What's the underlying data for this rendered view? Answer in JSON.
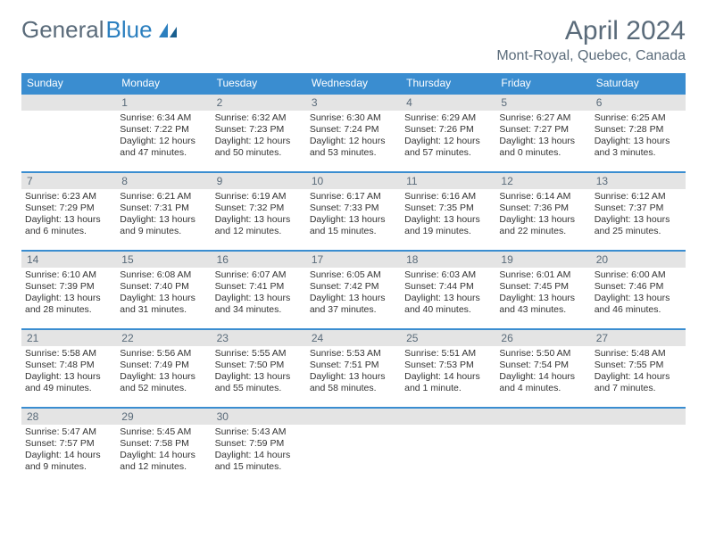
{
  "logo": {
    "text1": "General",
    "text2": "Blue"
  },
  "title": "April 2024",
  "location": "Mont-Royal, Quebec, Canada",
  "colors": {
    "header_bg": "#3a8dd0",
    "header_text": "#ffffff",
    "daynum_bg": "#e4e4e4",
    "daynum_text": "#5a6b7a",
    "border": "#3a8dd0",
    "logo_gray": "#5a6b7a",
    "logo_blue": "#2b7fbf"
  },
  "day_headers": [
    "Sunday",
    "Monday",
    "Tuesday",
    "Wednesday",
    "Thursday",
    "Friday",
    "Saturday"
  ],
  "weeks": [
    [
      {
        "n": "",
        "sunrise": "",
        "sunset": "",
        "daylight": ""
      },
      {
        "n": "1",
        "sunrise": "Sunrise: 6:34 AM",
        "sunset": "Sunset: 7:22 PM",
        "daylight": "Daylight: 12 hours and 47 minutes."
      },
      {
        "n": "2",
        "sunrise": "Sunrise: 6:32 AM",
        "sunset": "Sunset: 7:23 PM",
        "daylight": "Daylight: 12 hours and 50 minutes."
      },
      {
        "n": "3",
        "sunrise": "Sunrise: 6:30 AM",
        "sunset": "Sunset: 7:24 PM",
        "daylight": "Daylight: 12 hours and 53 minutes."
      },
      {
        "n": "4",
        "sunrise": "Sunrise: 6:29 AM",
        "sunset": "Sunset: 7:26 PM",
        "daylight": "Daylight: 12 hours and 57 minutes."
      },
      {
        "n": "5",
        "sunrise": "Sunrise: 6:27 AM",
        "sunset": "Sunset: 7:27 PM",
        "daylight": "Daylight: 13 hours and 0 minutes."
      },
      {
        "n": "6",
        "sunrise": "Sunrise: 6:25 AM",
        "sunset": "Sunset: 7:28 PM",
        "daylight": "Daylight: 13 hours and 3 minutes."
      }
    ],
    [
      {
        "n": "7",
        "sunrise": "Sunrise: 6:23 AM",
        "sunset": "Sunset: 7:29 PM",
        "daylight": "Daylight: 13 hours and 6 minutes."
      },
      {
        "n": "8",
        "sunrise": "Sunrise: 6:21 AM",
        "sunset": "Sunset: 7:31 PM",
        "daylight": "Daylight: 13 hours and 9 minutes."
      },
      {
        "n": "9",
        "sunrise": "Sunrise: 6:19 AM",
        "sunset": "Sunset: 7:32 PM",
        "daylight": "Daylight: 13 hours and 12 minutes."
      },
      {
        "n": "10",
        "sunrise": "Sunrise: 6:17 AM",
        "sunset": "Sunset: 7:33 PM",
        "daylight": "Daylight: 13 hours and 15 minutes."
      },
      {
        "n": "11",
        "sunrise": "Sunrise: 6:16 AM",
        "sunset": "Sunset: 7:35 PM",
        "daylight": "Daylight: 13 hours and 19 minutes."
      },
      {
        "n": "12",
        "sunrise": "Sunrise: 6:14 AM",
        "sunset": "Sunset: 7:36 PM",
        "daylight": "Daylight: 13 hours and 22 minutes."
      },
      {
        "n": "13",
        "sunrise": "Sunrise: 6:12 AM",
        "sunset": "Sunset: 7:37 PM",
        "daylight": "Daylight: 13 hours and 25 minutes."
      }
    ],
    [
      {
        "n": "14",
        "sunrise": "Sunrise: 6:10 AM",
        "sunset": "Sunset: 7:39 PM",
        "daylight": "Daylight: 13 hours and 28 minutes."
      },
      {
        "n": "15",
        "sunrise": "Sunrise: 6:08 AM",
        "sunset": "Sunset: 7:40 PM",
        "daylight": "Daylight: 13 hours and 31 minutes."
      },
      {
        "n": "16",
        "sunrise": "Sunrise: 6:07 AM",
        "sunset": "Sunset: 7:41 PM",
        "daylight": "Daylight: 13 hours and 34 minutes."
      },
      {
        "n": "17",
        "sunrise": "Sunrise: 6:05 AM",
        "sunset": "Sunset: 7:42 PM",
        "daylight": "Daylight: 13 hours and 37 minutes."
      },
      {
        "n": "18",
        "sunrise": "Sunrise: 6:03 AM",
        "sunset": "Sunset: 7:44 PM",
        "daylight": "Daylight: 13 hours and 40 minutes."
      },
      {
        "n": "19",
        "sunrise": "Sunrise: 6:01 AM",
        "sunset": "Sunset: 7:45 PM",
        "daylight": "Daylight: 13 hours and 43 minutes."
      },
      {
        "n": "20",
        "sunrise": "Sunrise: 6:00 AM",
        "sunset": "Sunset: 7:46 PM",
        "daylight": "Daylight: 13 hours and 46 minutes."
      }
    ],
    [
      {
        "n": "21",
        "sunrise": "Sunrise: 5:58 AM",
        "sunset": "Sunset: 7:48 PM",
        "daylight": "Daylight: 13 hours and 49 minutes."
      },
      {
        "n": "22",
        "sunrise": "Sunrise: 5:56 AM",
        "sunset": "Sunset: 7:49 PM",
        "daylight": "Daylight: 13 hours and 52 minutes."
      },
      {
        "n": "23",
        "sunrise": "Sunrise: 5:55 AM",
        "sunset": "Sunset: 7:50 PM",
        "daylight": "Daylight: 13 hours and 55 minutes."
      },
      {
        "n": "24",
        "sunrise": "Sunrise: 5:53 AM",
        "sunset": "Sunset: 7:51 PM",
        "daylight": "Daylight: 13 hours and 58 minutes."
      },
      {
        "n": "25",
        "sunrise": "Sunrise: 5:51 AM",
        "sunset": "Sunset: 7:53 PM",
        "daylight": "Daylight: 14 hours and 1 minute."
      },
      {
        "n": "26",
        "sunrise": "Sunrise: 5:50 AM",
        "sunset": "Sunset: 7:54 PM",
        "daylight": "Daylight: 14 hours and 4 minutes."
      },
      {
        "n": "27",
        "sunrise": "Sunrise: 5:48 AM",
        "sunset": "Sunset: 7:55 PM",
        "daylight": "Daylight: 14 hours and 7 minutes."
      }
    ],
    [
      {
        "n": "28",
        "sunrise": "Sunrise: 5:47 AM",
        "sunset": "Sunset: 7:57 PM",
        "daylight": "Daylight: 14 hours and 9 minutes."
      },
      {
        "n": "29",
        "sunrise": "Sunrise: 5:45 AM",
        "sunset": "Sunset: 7:58 PM",
        "daylight": "Daylight: 14 hours and 12 minutes."
      },
      {
        "n": "30",
        "sunrise": "Sunrise: 5:43 AM",
        "sunset": "Sunset: 7:59 PM",
        "daylight": "Daylight: 14 hours and 15 minutes."
      },
      {
        "n": "",
        "sunrise": "",
        "sunset": "",
        "daylight": ""
      },
      {
        "n": "",
        "sunrise": "",
        "sunset": "",
        "daylight": ""
      },
      {
        "n": "",
        "sunrise": "",
        "sunset": "",
        "daylight": ""
      },
      {
        "n": "",
        "sunrise": "",
        "sunset": "",
        "daylight": ""
      }
    ]
  ]
}
